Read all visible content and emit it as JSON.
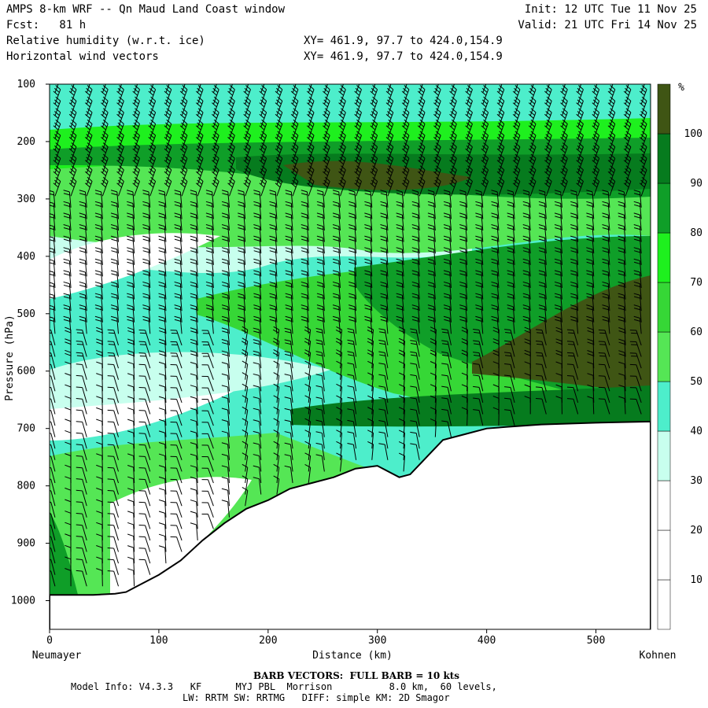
{
  "header": {
    "title": "AMPS 8-km WRF -- Qn Maud Land Coast window",
    "init": "Init: 12 UTC Tue 11 Nov 25",
    "fcst": "Fcst:   81 h",
    "valid": "Valid: 21 UTC Fri 14 Nov 25",
    "field1": "Relative humidity (w.r.t. ice)",
    "field2": "Horizontal wind vectors",
    "xy1": "XY= 461.9, 97.7 to 424.0,154.9",
    "xy2": "XY= 461.9, 97.7 to 424.0,154.9"
  },
  "footer": {
    "barb_note": "BARB VECTORS:  FULL BARB = 10 kts",
    "model_line1": "Model Info: V4.3.3   KF      MYJ PBL  Morrison          8.0 km,  60 levels,",
    "model_line2": "LW: RRTM SW: RRTMG   DIFF: simple KM: 2D Smagor"
  },
  "colors": {
    "c0": "#ffffff",
    "c1": "#ffffff",
    "c2": "#ffffff",
    "c3": "#c8ffee",
    "c4": "#4deecb",
    "c5": "#55e655",
    "c6": "#36d736",
    "c7": "#1ef01e",
    "c8": "#0f9e28",
    "c9": "#067b1e",
    "c10": "#3f5514",
    "ground": "#ffffff"
  },
  "chart_data": {
    "type": "heatmap",
    "title": "Relative humidity (w.r.t. ice) cross-section with horizontal wind vectors",
    "xlabel": "Distance (km)",
    "ylabel": "Pressure (hPa)",
    "xlim": [
      0,
      550
    ],
    "ylim": [
      1050,
      100
    ],
    "x_ticks": [
      0,
      100,
      200,
      300,
      400,
      500
    ],
    "x_tick_labels": [
      "0",
      "100",
      "200",
      "300",
      "400",
      "500"
    ],
    "y_ticks": [
      100,
      200,
      300,
      400,
      500,
      600,
      700,
      800,
      900,
      1000
    ],
    "y_tick_labels": [
      "100",
      "200",
      "300",
      "400",
      "500",
      "600",
      "700",
      "800",
      "900",
      "1000"
    ],
    "left_endpoint": "Neumayer",
    "right_endpoint": "Kohnen",
    "colorbar": {
      "unit": "%",
      "levels": [
        10,
        20,
        30,
        40,
        50,
        60,
        70,
        80,
        90,
        100
      ],
      "labels": [
        "10",
        "20",
        "30",
        "40",
        "50",
        "60",
        "70",
        "80",
        "90",
        "100"
      ]
    },
    "terrain_surface_hPa": {
      "x": [
        0,
        20,
        40,
        60,
        70,
        80,
        100,
        120,
        140,
        160,
        180,
        200,
        220,
        240,
        260,
        280,
        300,
        320,
        330,
        340,
        350,
        360,
        380,
        400,
        420,
        450,
        500,
        550
      ],
      "p": [
        990,
        990,
        990,
        988,
        985,
        975,
        955,
        930,
        895,
        865,
        840,
        825,
        805,
        795,
        785,
        770,
        765,
        785,
        780,
        760,
        740,
        720,
        710,
        700,
        697,
        693,
        690,
        688
      ]
    }
  }
}
